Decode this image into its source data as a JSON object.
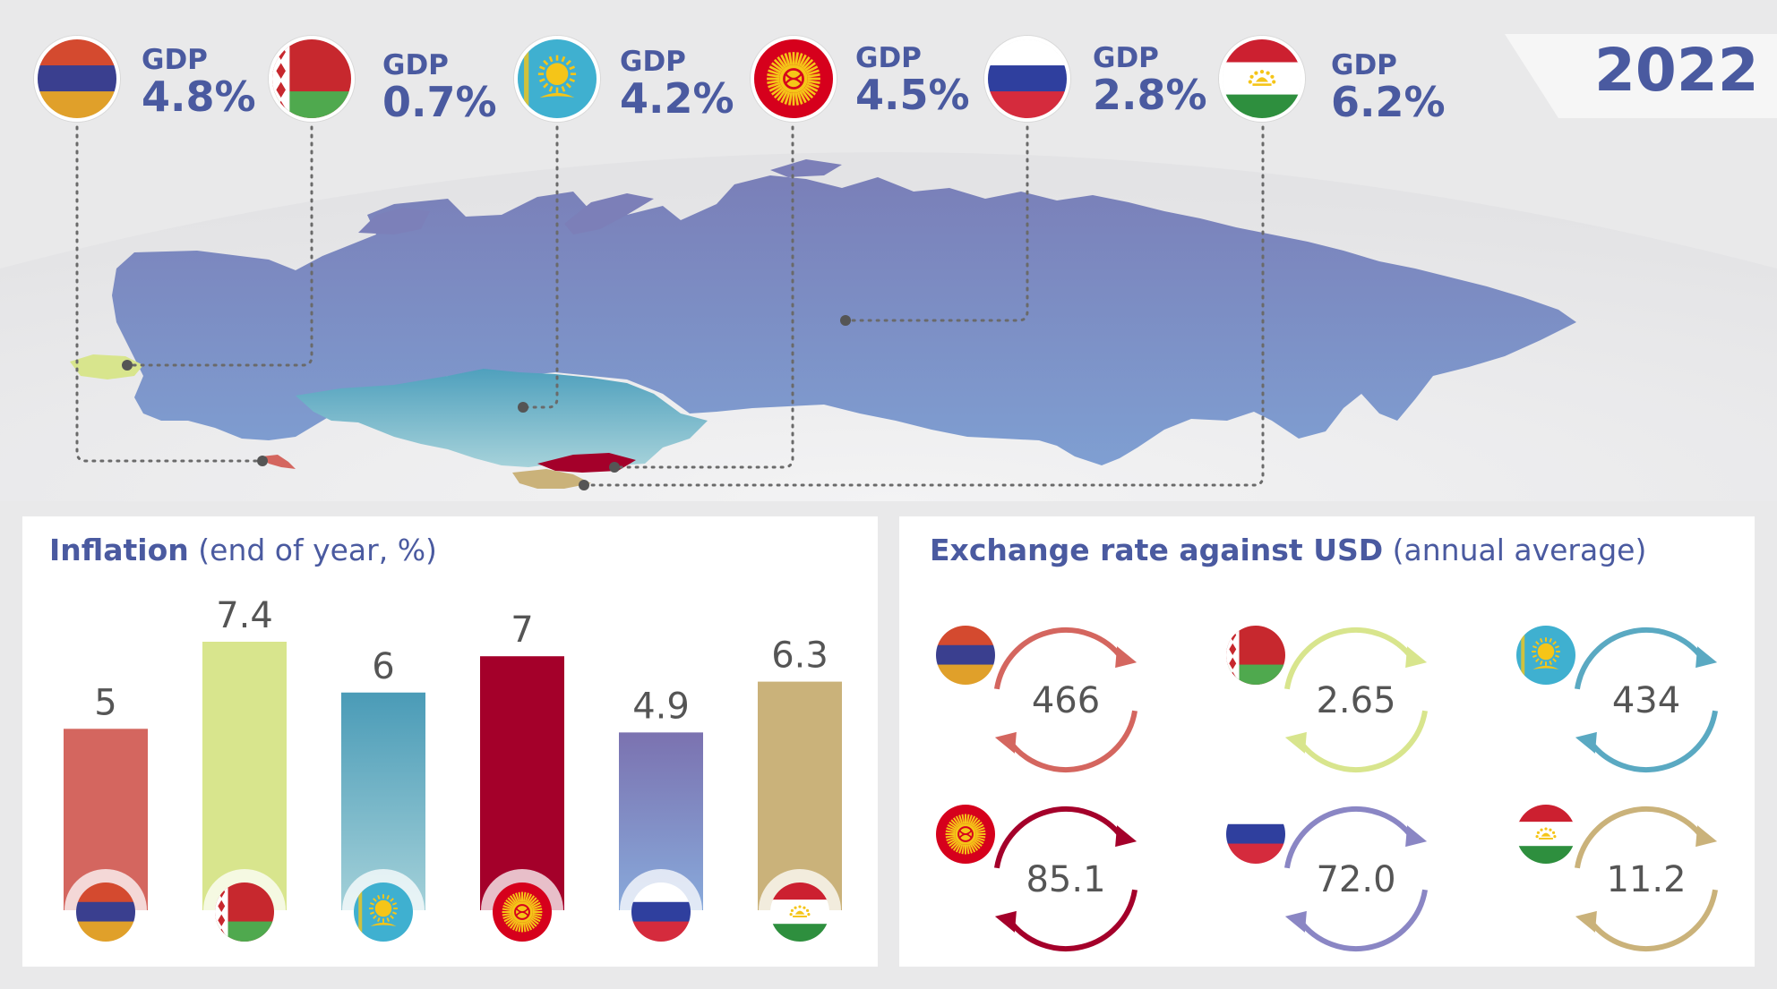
{
  "year": "2022",
  "countries": [
    {
      "id": "armenia",
      "gdp_label": "GDP",
      "gdp_value": "4.8%",
      "flag_icon": "armenia-flag-icon"
    },
    {
      "id": "belarus",
      "gdp_label": "GDP",
      "gdp_value": "0.7%",
      "flag_icon": "belarus-flag-icon"
    },
    {
      "id": "kazakhstan",
      "gdp_label": "GDP",
      "gdp_value": "4.2%",
      "flag_icon": "kazakhstan-flag-icon"
    },
    {
      "id": "kyrgyzstan",
      "gdp_label": "GDP",
      "gdp_value": "4.5%",
      "flag_icon": "kyrgyzstan-flag-icon"
    },
    {
      "id": "russia",
      "gdp_label": "GDP",
      "gdp_value": "2.8%",
      "flag_icon": "russia-flag-icon"
    },
    {
      "id": "tajikistan",
      "gdp_label": "GDP",
      "gdp_value": "6.2%",
      "flag_icon": "tajikistan-flag-icon"
    }
  ],
  "colors": {
    "accent": "#4a5aa0",
    "armenia": "#d4665f",
    "belarus": "#d8e58d",
    "kazakhstan": "#4a9bb7",
    "kyrgyzstan": "#a4002a",
    "russia": "#8179b6",
    "tajikistan": "#cab27a",
    "map_land": "#7d87c0"
  },
  "inflation": {
    "title_bold": "Inflation",
    "title_rest": "(end of year, %)"
  },
  "exchange": {
    "title_bold": "Exchange rate against USD",
    "title_rest": "(annual average)"
  },
  "chart_data": [
    {
      "type": "bar",
      "title": "Inflation (end of year, %)",
      "categories": [
        "armenia-flag-icon",
        "belarus-flag-icon",
        "kazakhstan-flag-icon",
        "kyrgyzstan-flag-icon",
        "russia-flag-icon",
        "tajikistan-flag-icon"
      ],
      "values": [
        5,
        7.4,
        6,
        7,
        4.9,
        6.3
      ],
      "labels": [
        "5",
        "7.4",
        "6",
        "7",
        "4.9",
        "6.3"
      ],
      "ylim": [
        0,
        8
      ],
      "grid": false
    },
    {
      "type": "table",
      "title": "Exchange rate against USD (annual average)",
      "categories": [
        "armenia-flag-icon",
        "belarus-flag-icon",
        "kazakhstan-flag-icon",
        "kyrgyzstan-flag-icon",
        "russia-flag-icon",
        "tajikistan-flag-icon"
      ],
      "values": [
        466,
        2.65,
        434,
        85.1,
        72.0,
        11.2
      ],
      "labels": [
        "466",
        "2.65",
        "434",
        "85.1",
        "72.0",
        "11.2"
      ]
    }
  ]
}
